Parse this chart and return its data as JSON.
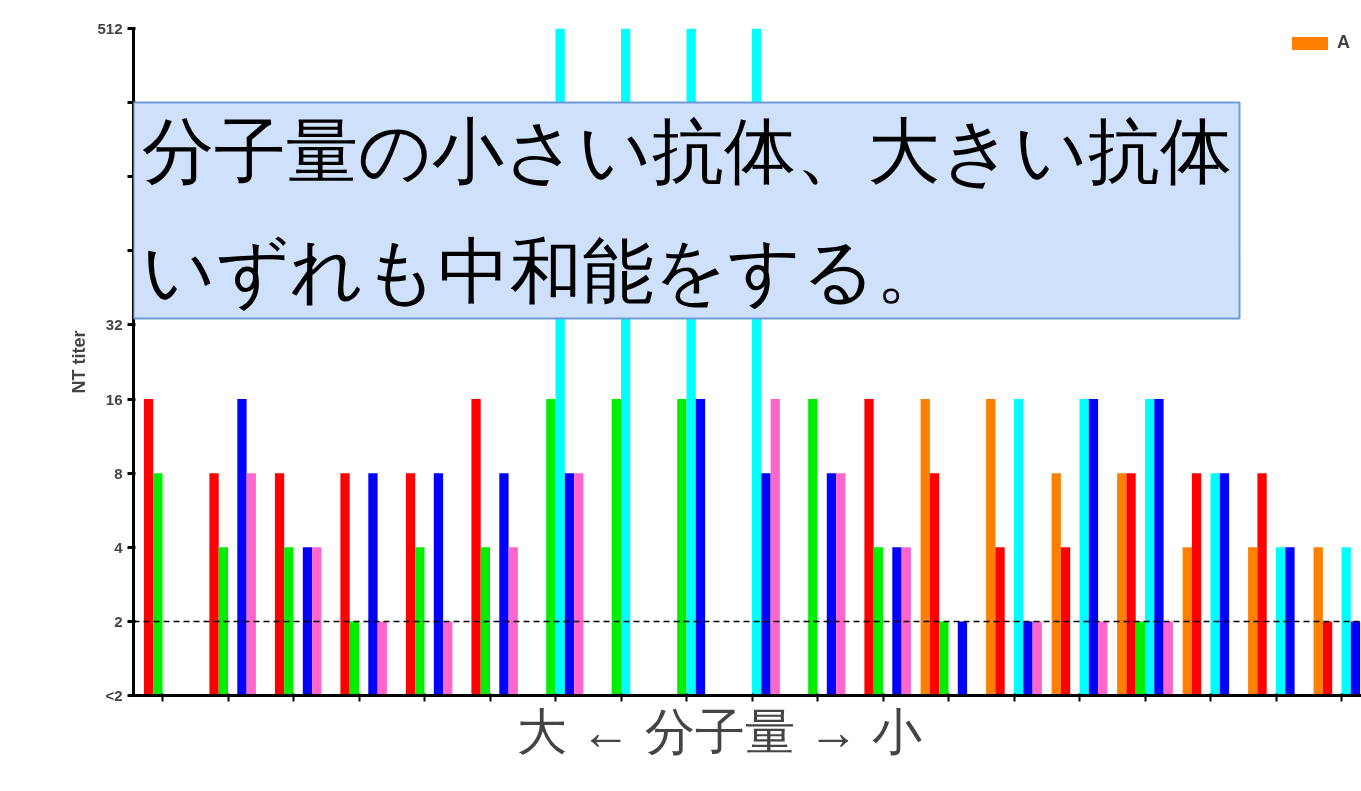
{
  "chart_data": {
    "type": "bar",
    "title": "分子量の小さい抗体、大きい抗体",
    "subtitle": "いずれも中和能をする。",
    "xlabel": "大  ←  分子量  →  小",
    "ylabel": "NT titer",
    "categories": [
      null,
      null,
      null,
      null,
      null,
      null,
      null,
      null,
      null,
      null,
      null,
      null,
      null,
      null,
      null,
      null,
      null,
      null,
      null
    ],
    "series": [
      {
        "name": "A",
        "color": "#ff8000",
        "values": [
          null,
          null,
          null,
          null,
          null,
          null,
          null,
          null,
          null,
          null,
          null,
          null,
          16,
          16,
          8,
          8,
          4,
          4,
          4
        ]
      },
      {
        "color": "#ff0000",
        "values": [
          16,
          8,
          8,
          8,
          8,
          16,
          null,
          null,
          null,
          null,
          null,
          16,
          8,
          4,
          4,
          8,
          8,
          8,
          2
        ]
      },
      {
        "color": "#00ee00",
        "values": [
          8,
          4,
          4,
          2,
          4,
          4,
          16,
          16,
          16,
          null,
          16,
          4,
          2,
          1,
          1,
          2,
          1,
          1,
          1
        ]
      },
      {
        "color": "#00ffff",
        "values": [
          null,
          null,
          null,
          null,
          null,
          null,
          512,
          512,
          512,
          512,
          null,
          null,
          null,
          16,
          16,
          16,
          8,
          4,
          4
        ]
      },
      {
        "color": "#0000ff",
        "values": [
          null,
          16,
          4,
          8,
          8,
          8,
          8,
          null,
          16,
          8,
          8,
          4,
          2,
          2,
          16,
          16,
          8,
          4,
          2
        ]
      },
      {
        "color": "#ff66cc",
        "values": [
          null,
          8,
          4,
          2,
          2,
          4,
          8,
          null,
          null,
          16,
          8,
          4,
          1,
          2,
          2,
          2,
          1,
          1,
          null
        ]
      }
    ],
    "log": true,
    "ylim": [
      1,
      512
    ],
    "yticks": [
      {
        "value": 1,
        "label": "<2"
      },
      2,
      4,
      8,
      16,
      32,
      {
        "value": 64,
        "label": null
      },
      {
        "value": 128,
        "label": null
      },
      {
        "value": 256,
        "label": null
      },
      512
    ],
    "ref_lines": [
      {
        "axis": "y",
        "value": 2,
        "color": "#000000",
        "line_style": "dashed"
      }
    ],
    "legend": "top right",
    "grid": false
  }
}
